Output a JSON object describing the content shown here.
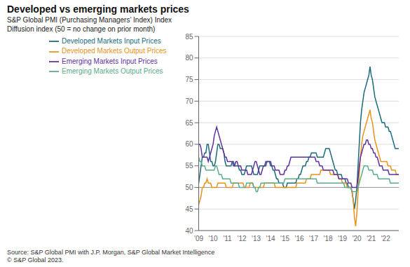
{
  "chart_data": {
    "type": "line",
    "title": "Developed vs emerging markets prices",
    "subtitles": [
      "S&P Global PMI (Purchasing Managers’ Index) Index",
      "Diffusion index (50 = no change on prior month)"
    ],
    "source": "Source: S&P Global PMI with J.P. Morgan, S&P Global Market Intelligence\n© S&P Global 2023.",
    "ylim": [
      40,
      85
    ],
    "yticks": [
      40,
      45,
      50,
      55,
      60,
      65,
      70,
      75,
      80,
      85
    ],
    "reference_line": 50,
    "grid": true,
    "legend": "top",
    "categories": [
      "'09",
      null,
      null,
      null,
      null,
      null,
      null,
      null,
      null,
      null,
      null,
      null,
      "'10",
      null,
      null,
      null,
      null,
      null,
      null,
      null,
      null,
      null,
      null,
      null,
      "'11",
      null,
      null,
      null,
      null,
      null,
      null,
      null,
      null,
      null,
      null,
      null,
      "'12",
      null,
      null,
      null,
      null,
      null,
      null,
      null,
      null,
      null,
      null,
      null,
      "'13",
      null,
      null,
      null,
      null,
      null,
      null,
      null,
      null,
      null,
      null,
      null,
      "'14",
      null,
      null,
      null,
      null,
      null,
      null,
      null,
      null,
      null,
      null,
      null,
      "'15",
      null,
      null,
      null,
      null,
      null,
      null,
      null,
      null,
      null,
      null,
      null,
      "'16",
      null,
      null,
      null,
      null,
      null,
      null,
      null,
      null,
      null,
      null,
      null,
      "'17",
      null,
      null,
      null,
      null,
      null,
      null,
      null,
      null,
      null,
      null,
      null,
      "'18",
      null,
      null,
      null,
      null,
      null,
      null,
      null,
      null,
      null,
      null,
      null,
      "'19",
      null,
      null,
      null,
      null,
      null,
      null,
      null,
      null,
      null,
      null,
      null,
      "'20",
      null,
      null,
      null,
      null,
      null,
      null,
      null,
      null,
      null,
      null,
      null,
      "'21",
      null,
      null,
      null,
      null,
      null,
      null,
      null,
      null,
      null,
      null,
      null,
      "'22",
      null,
      null,
      null,
      null,
      null,
      null,
      null,
      null,
      null,
      null,
      null
    ],
    "series": [
      {
        "name": "Developed Markets Input Prices",
        "color": "#1a6b7a",
        "values": [
          51,
          53,
          55,
          57,
          57,
          58,
          58,
          60,
          60,
          58,
          56,
          56,
          55,
          55,
          56,
          58,
          60,
          60,
          59,
          59,
          59,
          58,
          56,
          55,
          55,
          55,
          55,
          55,
          56,
          56,
          55,
          55,
          55,
          55,
          54,
          54,
          53,
          53,
          53,
          54,
          55,
          55,
          55,
          55,
          55,
          54,
          53,
          53,
          53,
          53,
          54,
          55,
          55,
          55,
          55,
          55,
          55,
          56,
          56,
          56,
          55,
          55,
          54,
          54,
          53,
          52,
          52,
          51,
          51,
          51,
          51,
          50,
          50,
          50,
          51,
          51,
          51,
          51,
          51,
          51,
          51,
          51,
          52,
          52,
          53,
          53,
          54,
          55,
          55,
          55,
          56,
          56,
          57,
          57,
          58,
          58,
          58,
          58,
          58,
          57,
          57,
          57,
          57,
          57,
          57,
          58,
          59,
          59,
          59,
          59,
          58,
          57,
          56,
          55,
          54,
          54,
          53,
          53,
          53,
          53,
          52,
          52,
          52,
          51,
          51,
          50,
          50,
          50,
          49,
          47,
          45,
          47,
          50,
          55,
          60,
          65,
          68,
          70,
          72,
          73,
          74,
          75,
          76,
          78,
          76,
          75,
          73,
          71,
          70,
          69,
          68,
          67,
          66,
          65,
          65,
          65,
          64,
          64,
          64,
          63,
          63,
          62,
          61,
          60,
          59,
          59,
          59,
          59
        ]
      },
      {
        "name": "Developed Markets Output Prices",
        "color": "#e8921a",
        "values": [
          46,
          47,
          48,
          50,
          50,
          51,
          51,
          52,
          51,
          51,
          51,
          50,
          50,
          50,
          50,
          50,
          51,
          51,
          51,
          51,
          51,
          51,
          51,
          50,
          50,
          50,
          50,
          50,
          50,
          51,
          51,
          51,
          51,
          51,
          51,
          51,
          51,
          51,
          50,
          50,
          50,
          50,
          50,
          51,
          51,
          51,
          50,
          50,
          50,
          50,
          50,
          50,
          50,
          50,
          50,
          51,
          51,
          51,
          51,
          51,
          51,
          51,
          51,
          51,
          50,
          50,
          50,
          50,
          50,
          50,
          50,
          50,
          50,
          50,
          50,
          50,
          50,
          50,
          50,
          50,
          50,
          50,
          51,
          51,
          51,
          51,
          51,
          51,
          51,
          51,
          52,
          52,
          52,
          52,
          53,
          53,
          53,
          53,
          53,
          53,
          53,
          53,
          54,
          54,
          54,
          54,
          54,
          54,
          54,
          54,
          53,
          53,
          53,
          53,
          53,
          53,
          53,
          52,
          52,
          52,
          51,
          51,
          51,
          51,
          50,
          50,
          50,
          50,
          49,
          47,
          43,
          41,
          44,
          49,
          53,
          57,
          60,
          62,
          63,
          64,
          65,
          66,
          67,
          68,
          66,
          65,
          63,
          61,
          60,
          59,
          58,
          57,
          56,
          56,
          56,
          56,
          56,
          56,
          55,
          55,
          55,
          54,
          54,
          54,
          54,
          53,
          53,
          53
        ]
      },
      {
        "name": "Emerging Markets Input Prices",
        "color": "#6030a0",
        "values": [
          60,
          60,
          59,
          57,
          57,
          57,
          57,
          57,
          56,
          57,
          58,
          59,
          60,
          62,
          63,
          64,
          63,
          62,
          61,
          60,
          59,
          58,
          57,
          57,
          56,
          56,
          56,
          56,
          56,
          55,
          55,
          56,
          56,
          55,
          55,
          55,
          54,
          54,
          54,
          54,
          54,
          53,
          53,
          53,
          53,
          54,
          55,
          56,
          56,
          55,
          54,
          53,
          53,
          54,
          55,
          55,
          56,
          56,
          56,
          56,
          56,
          55,
          55,
          55,
          54,
          54,
          54,
          54,
          53,
          53,
          53,
          53,
          54,
          54,
          55,
          55,
          56,
          57,
          57,
          57,
          57,
          57,
          57,
          57,
          57,
          57,
          57,
          57,
          57,
          57,
          57,
          57,
          57,
          57,
          57,
          57,
          57,
          57,
          56,
          56,
          56,
          55,
          55,
          55,
          54,
          54,
          54,
          54,
          54,
          54,
          54,
          54,
          54,
          53,
          53,
          53,
          53,
          52,
          52,
          52,
          52,
          52,
          52,
          52,
          52,
          51,
          51,
          51,
          50,
          50,
          50,
          50,
          50,
          52,
          55,
          57,
          58,
          59,
          60,
          60,
          61,
          61,
          60,
          60,
          59,
          59,
          58,
          58,
          57,
          57,
          56,
          55,
          55,
          55,
          54,
          54,
          54,
          54,
          54,
          53,
          53,
          53,
          53,
          53,
          53,
          53,
          53,
          53
        ]
      },
      {
        "name": "Emerging Markets Output Prices",
        "color": "#5aab8a",
        "values": [
          57,
          56,
          56,
          55,
          55,
          55,
          54,
          54,
          54,
          54,
          54,
          54,
          54,
          54,
          55,
          55,
          54,
          53,
          53,
          53,
          52,
          52,
          52,
          52,
          52,
          52,
          52,
          51,
          51,
          51,
          51,
          51,
          51,
          51,
          50,
          50,
          50,
          50,
          50,
          50,
          51,
          51,
          51,
          51,
          51,
          51,
          50,
          50,
          49,
          49,
          50,
          50,
          51,
          51,
          51,
          51,
          51,
          51,
          51,
          51,
          51,
          51,
          51,
          51,
          51,
          51,
          51,
          51,
          51,
          51,
          51,
          51,
          52,
          52,
          52,
          52,
          52,
          52,
          52,
          52,
          52,
          52,
          52,
          52,
          52,
          52,
          52,
          52,
          52,
          52,
          52,
          52,
          52,
          52,
          52,
          52,
          52,
          52,
          52,
          51,
          51,
          51,
          51,
          51,
          51,
          51,
          51,
          51,
          51,
          51,
          51,
          51,
          51,
          51,
          51,
          51,
          51,
          51,
          51,
          51,
          51,
          51,
          50,
          50,
          50,
          50,
          50,
          50,
          49,
          49,
          49,
          49,
          49,
          50,
          51,
          52,
          53,
          54,
          55,
          55,
          55,
          55,
          54,
          54,
          54,
          54,
          53,
          53,
          53,
          53,
          52,
          52,
          52,
          52,
          52,
          52,
          52,
          52,
          52,
          52,
          51,
          51,
          51,
          51,
          51,
          51,
          51,
          51
        ]
      }
    ]
  }
}
